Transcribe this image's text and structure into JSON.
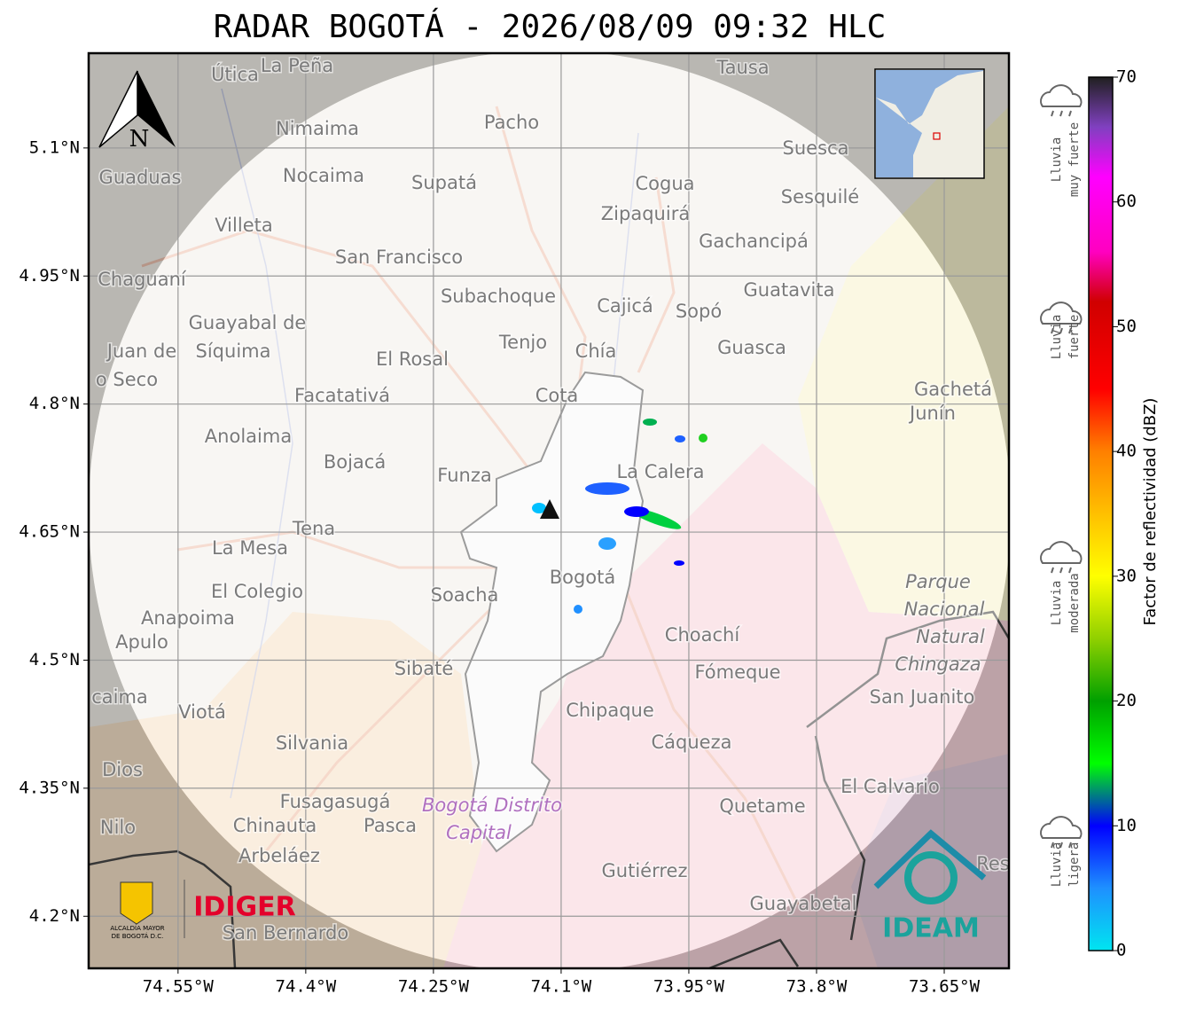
{
  "title": "RADAR BOGOTÁ - 2026/08/09 09:32 HLC",
  "map": {
    "xlim": [
      -74.655,
      -73.574
    ],
    "ylim": [
      4.139,
      5.211
    ],
    "xticks": [
      {
        "value": -74.55,
        "label": "74.55°W"
      },
      {
        "value": -74.4,
        "label": "74.4°W"
      },
      {
        "value": -74.25,
        "label": "74.25°W"
      },
      {
        "value": -74.1,
        "label": "74.1°W"
      },
      {
        "value": -73.95,
        "label": "73.95°W"
      },
      {
        "value": -73.8,
        "label": "73.8°W"
      },
      {
        "value": -73.65,
        "label": "73.65°W"
      }
    ],
    "yticks": [
      {
        "value": 5.1,
        "label": "5.1°N"
      },
      {
        "value": 4.95,
        "label": "4.95°N"
      },
      {
        "value": 4.8,
        "label": "4.8°N"
      },
      {
        "value": 4.65,
        "label": "4.65°N"
      },
      {
        "value": 4.5,
        "label": "4.5°N"
      },
      {
        "value": 4.35,
        "label": "4.35°N"
      },
      {
        "value": 4.2,
        "label": "4.2°N"
      }
    ],
    "grid": true,
    "north": "N",
    "places": [
      "Útica",
      "La Peña",
      "Tausa",
      "Pacho",
      "Nimaima",
      "Suesca",
      "Guaduas",
      "Nocaima",
      "Supatá",
      "Cogua",
      "Sesquilé",
      "Zipaquirá",
      "Villeta",
      "Gachancipá",
      "San Francisco",
      "Chaguaní",
      "Guatavita",
      "Subachoque",
      "Cajicá",
      "Sopó",
      "Guayabal de",
      "Síquima",
      "Juan de",
      "Tenjo",
      "Chía",
      "Guasca",
      "El Rosal",
      "o Seco",
      "Facatativá",
      "Cota",
      "Gachetá",
      "Junín",
      "Anolaima",
      "Bojacá",
      "Funza",
      "La Calera",
      "Tena",
      "La Mesa",
      "Bogotá",
      "El Colegio",
      "Soacha",
      "Anapoima",
      "Apulo",
      "Choachí",
      "Fómeque",
      "Sibaté",
      "San Juanito",
      "caima",
      "Viotá",
      "Chipaque",
      "Silvania",
      "Cáqueza",
      "Dios",
      "El Calvario",
      "Fusagasugá",
      "Quetame",
      "Nilo",
      "Chinauta",
      "Pasca",
      "Arbeláez",
      "Gutiérrez",
      "Res",
      "Guayabetal",
      "San Bernardo"
    ],
    "italic_places": [
      "Bogotá Distrito",
      "Capital",
      "Parque",
      "Nacional",
      "Natural",
      "Chingaza"
    ]
  },
  "colorbar": {
    "label": "Factor de reflectividad (dBZ)",
    "lim": [
      0,
      70
    ],
    "ticks": [
      0,
      10,
      20,
      30,
      40,
      50,
      60,
      70
    ],
    "colormap": [
      {
        "value": 0,
        "color": "#00e5f0"
      },
      {
        "value": 5,
        "color": "#1e90ff"
      },
      {
        "value": 10,
        "color": "#0000ff"
      },
      {
        "value": 15,
        "color": "#00ff00"
      },
      {
        "value": 20,
        "color": "#00a000"
      },
      {
        "value": 25,
        "color": "#90d000"
      },
      {
        "value": 30,
        "color": "#ffff00"
      },
      {
        "value": 35,
        "color": "#ffc000"
      },
      {
        "value": 40,
        "color": "#ff8000"
      },
      {
        "value": 45,
        "color": "#ff0000"
      },
      {
        "value": 52,
        "color": "#d00000"
      },
      {
        "value": 56,
        "color": "#ff00c0"
      },
      {
        "value": 62,
        "color": "#ff00ff"
      },
      {
        "value": 66,
        "color": "#8040c0"
      },
      {
        "value": 70,
        "color": "#202020"
      }
    ]
  },
  "rain_levels": [
    [
      "Lluvia",
      "muy fuerte"
    ],
    [
      "Lluvia",
      "fuerte"
    ],
    [
      "Lluvia",
      "moderada"
    ],
    [
      "Lluvia",
      "ligera"
    ]
  ],
  "logos": {
    "alcaldia": [
      "ALCALDÍA MAYOR",
      "DE BOGOTÁ D.C."
    ],
    "idiger": "IDIGER",
    "ideam": "IDEAM"
  }
}
